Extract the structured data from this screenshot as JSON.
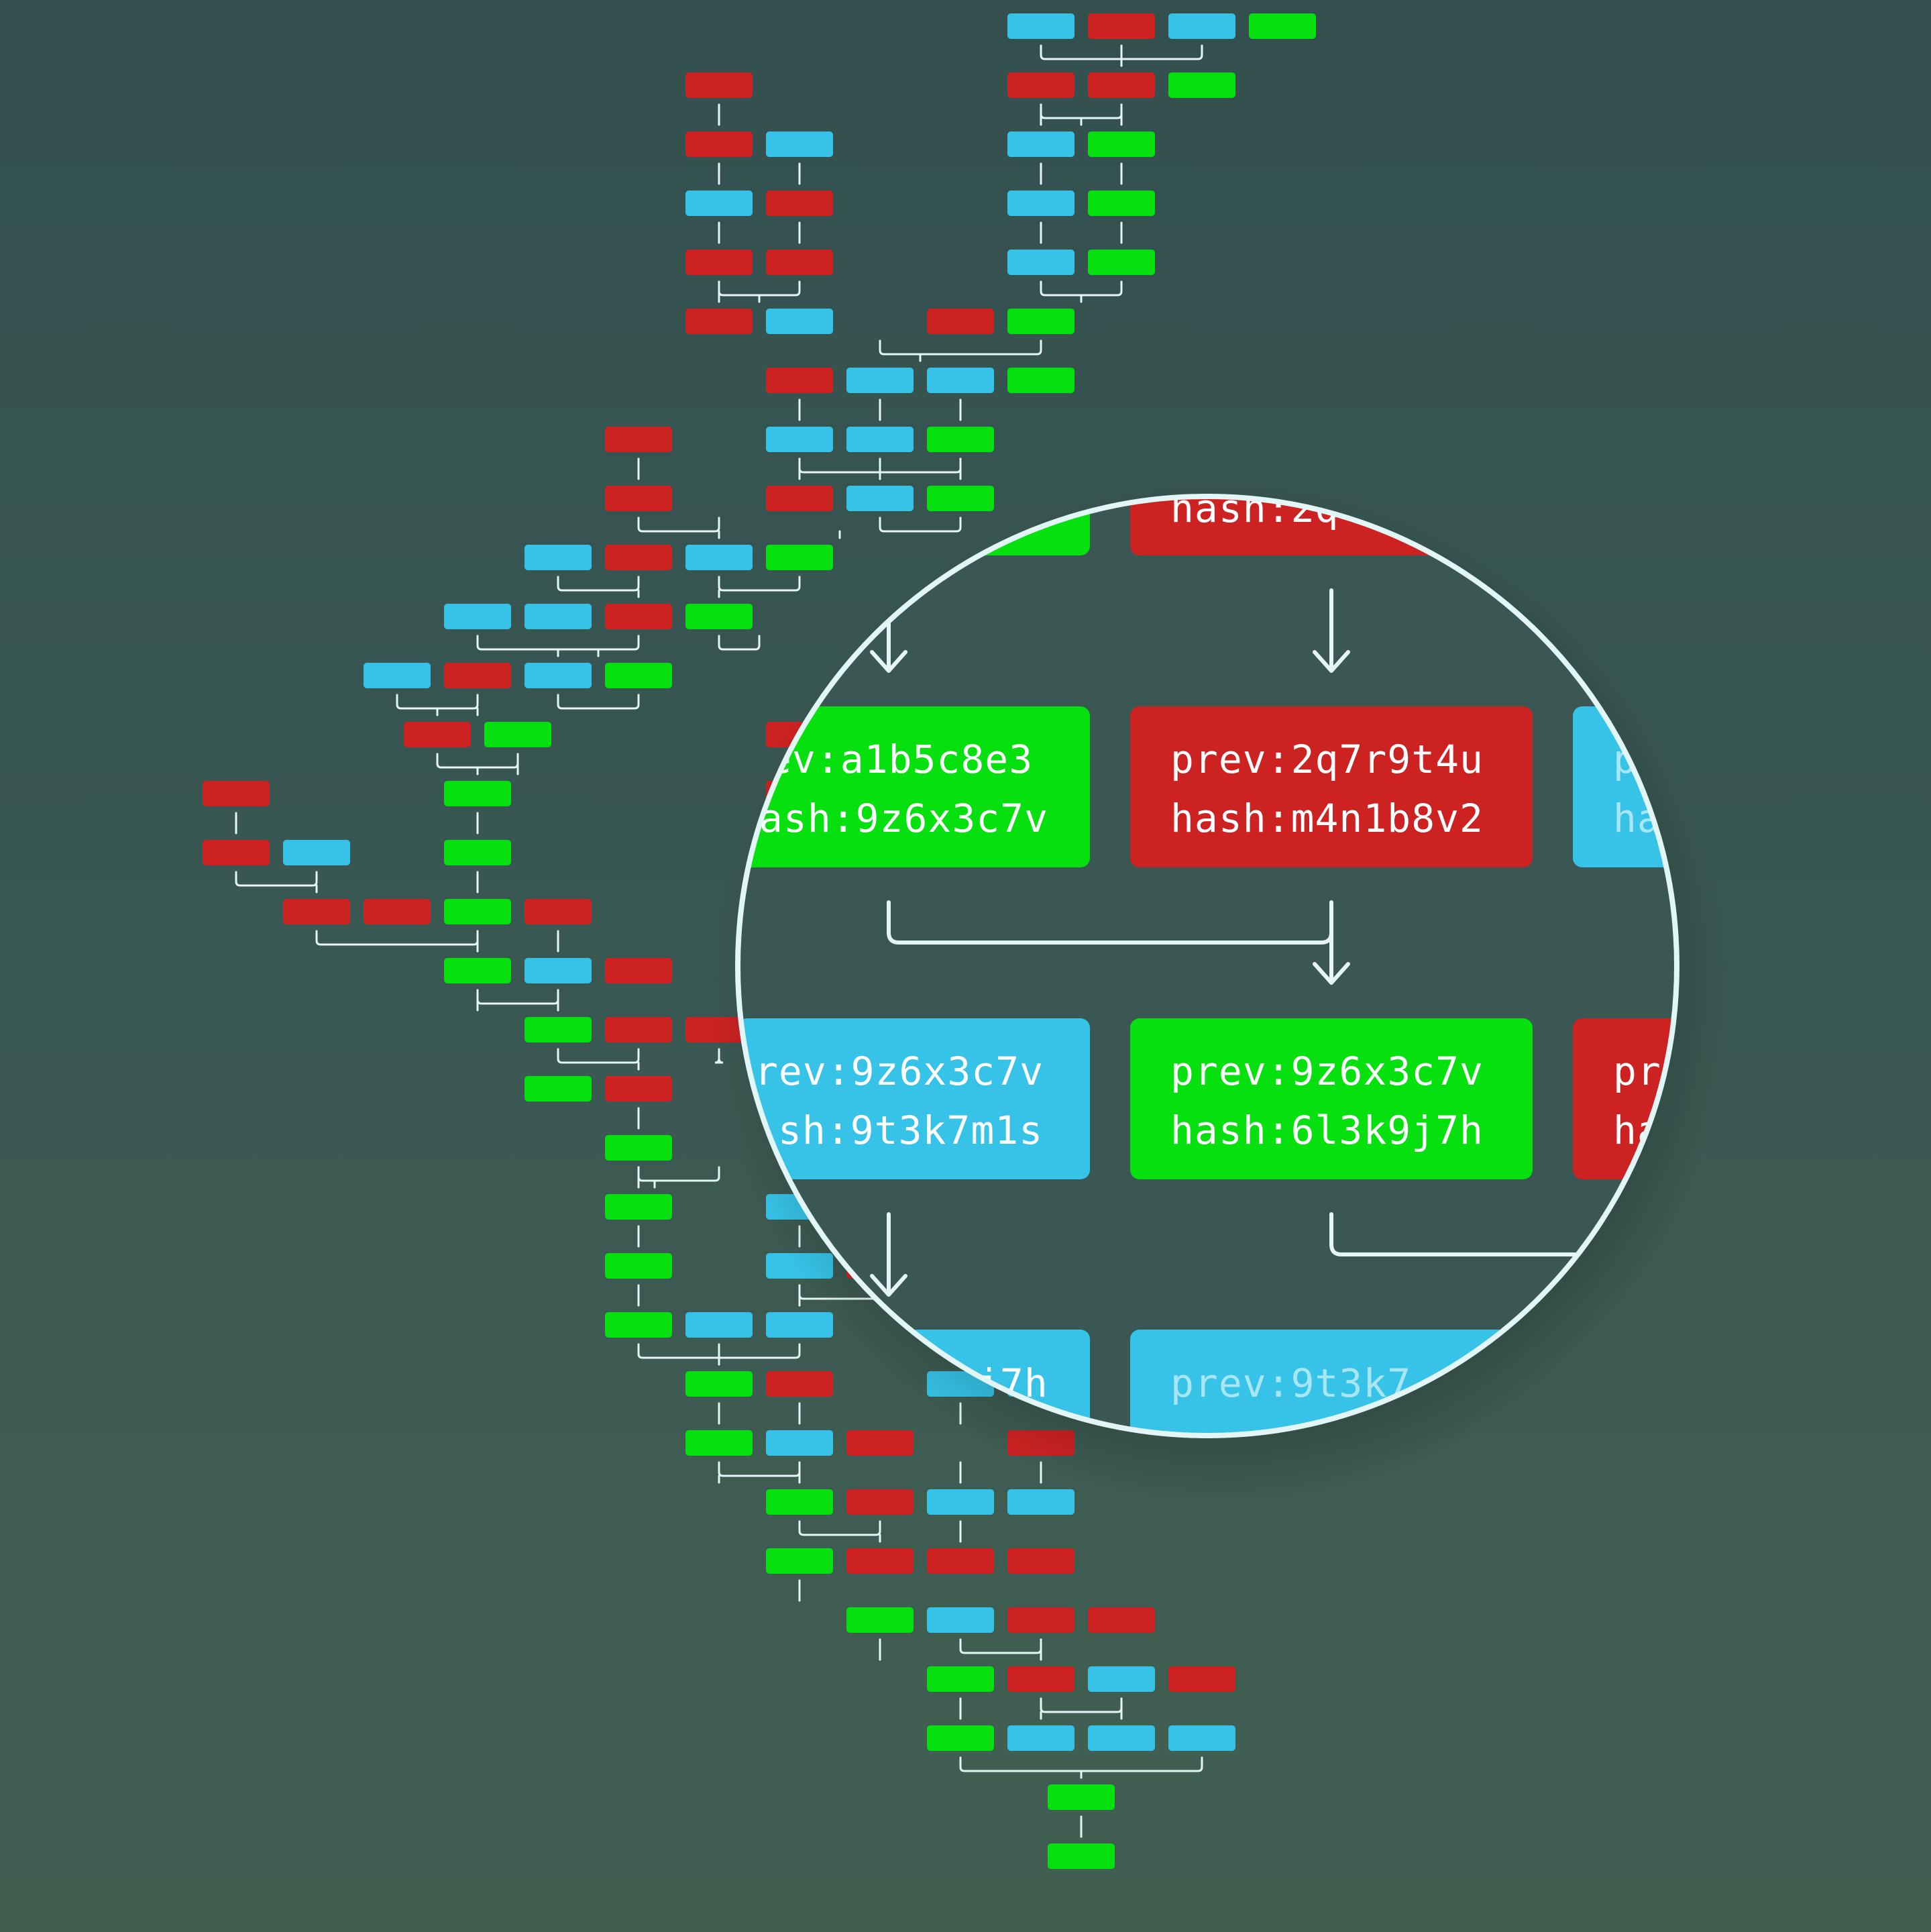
{
  "colors": {
    "background_top": "#33504f",
    "background_bottom": "#415f51",
    "red": "#cc2222",
    "blue": "#37c3e8",
    "green": "#06e00f",
    "connector": "#e6f6f8",
    "lens_border": "#e2f6f8"
  },
  "block_types": [
    "red",
    "blue",
    "green"
  ],
  "zoom_lens": {
    "blocks": [
      {
        "id": "top-left",
        "color": "green",
        "prev": "",
        "hash": ""
      },
      {
        "id": "top-mid",
        "color": "red",
        "prev": "",
        "hash": "hash:2q"
      },
      {
        "id": "row1-left",
        "color": "green",
        "prev": "ev:a1b5c8e3",
        "hash": "ash:9z6x3c7v"
      },
      {
        "id": "row1-mid",
        "color": "red",
        "prev": "prev:2q7r9t4u",
        "hash": "hash:m4n1b8v2"
      },
      {
        "id": "row1-right",
        "color": "blue",
        "prev": "p",
        "hash": "ha"
      },
      {
        "id": "row2-left",
        "color": "blue",
        "prev": "rev:9z6x3c7v",
        "hash": "sh:9t3k7m1s"
      },
      {
        "id": "row2-mid",
        "color": "green",
        "prev": "prev:9z6x3c7v",
        "hash": "hash:6l3k9j7h"
      },
      {
        "id": "row2-right",
        "color": "red",
        "prev": "pr",
        "hash": "ha"
      },
      {
        "id": "row3-left",
        "color": "blue",
        "prev": "j7h",
        "hash": ""
      },
      {
        "id": "row3-mid",
        "color": "blue",
        "prev": "prev:9t3k7",
        "hash": ""
      }
    ]
  }
}
